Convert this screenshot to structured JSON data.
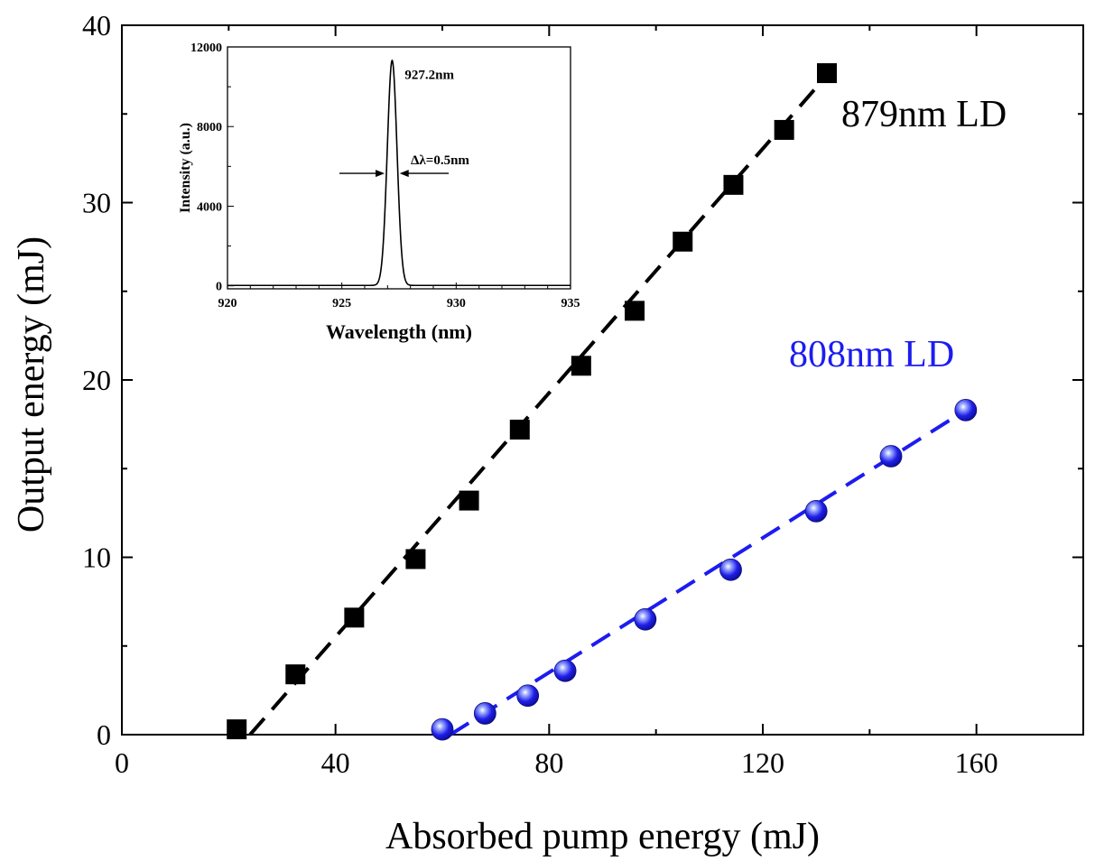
{
  "chart_data": [
    {
      "type": "scatter",
      "xlabel": "Absorbed pump energy (mJ)",
      "ylabel": "Output energy (mJ)",
      "xlim": [
        0,
        180
      ],
      "ylim": [
        0,
        40
      ],
      "x_ticks": [
        0,
        40,
        80,
        120,
        160
      ],
      "y_ticks": [
        0,
        10,
        20,
        30,
        40
      ],
      "grid": false,
      "series": [
        {
          "name": "879nm LD",
          "color": "#000000",
          "marker": "square",
          "x": [
            21.5,
            32.5,
            43.5,
            55.0,
            65.0,
            74.5,
            86.0,
            96.0,
            105.0,
            114.5,
            124.0,
            132.0
          ],
          "y": [
            0.3,
            3.4,
            6.6,
            9.9,
            13.2,
            17.2,
            20.8,
            23.9,
            27.8,
            31.0,
            34.1,
            37.3
          ],
          "fit": {
            "x": [
              24.0,
              131.5
            ],
            "y": [
              0.0,
              37.0
            ]
          }
        },
        {
          "name": "808nm LD",
          "color": "#1c1cf0",
          "marker": "sphere",
          "x": [
            60.0,
            68.0,
            76.0,
            83.0,
            98.0,
            114.0,
            130.0,
            144.0,
            158.0
          ],
          "y": [
            0.3,
            1.2,
            2.2,
            3.6,
            6.5,
            9.3,
            12.6,
            15.7,
            18.3
          ],
          "fit": {
            "x": [
              61.5,
              158.0
            ],
            "y": [
              0.0,
              18.3
            ]
          }
        }
      ]
    },
    {
      "type": "line",
      "xlabel": "Wavelength (nm)",
      "ylabel": "Intensity (a.u.)",
      "xlim": [
        920,
        935
      ],
      "ylim": [
        -150,
        12000
      ],
      "x_ticks": [
        920,
        925,
        930,
        935
      ],
      "y_ticks": [
        0,
        4000,
        8000,
        12000
      ],
      "grid": false,
      "peak": {
        "center": 927.2,
        "amplitude": 11300,
        "fwhm": 0.5
      },
      "annotations": {
        "peak_label": "927.2nm",
        "linewidth_label": "Δλ=0.5nm"
      }
    }
  ]
}
